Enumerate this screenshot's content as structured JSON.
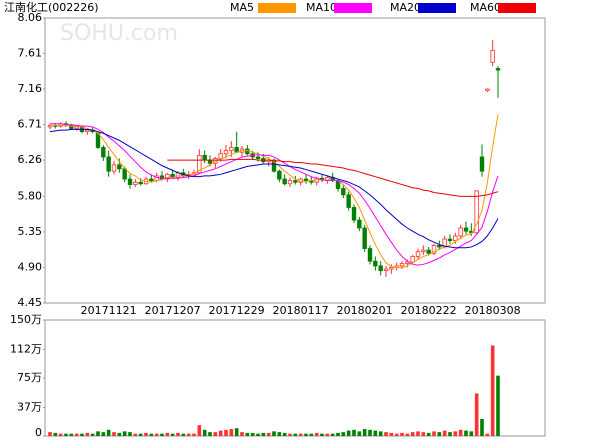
{
  "chart_data": [
    {
      "type": "candlestick",
      "title": "江南化工(002226)",
      "watermark": "SOHU.com",
      "categories": [
        null,
        null,
        null,
        null,
        null,
        null,
        null,
        null,
        null,
        null,
        null,
        "20171121",
        null,
        null,
        null,
        null,
        null,
        null,
        null,
        null,
        null,
        null,
        null,
        "20171207",
        null,
        null,
        null,
        null,
        null,
        null,
        null,
        null,
        null,
        null,
        null,
        "20171229",
        null,
        null,
        null,
        null,
        null,
        null,
        null,
        null,
        null,
        null,
        null,
        "20180117",
        null,
        null,
        null,
        null,
        null,
        null,
        null,
        null,
        null,
        null,
        null,
        "20180201",
        null,
        null,
        null,
        null,
        null,
        null,
        null,
        null,
        null,
        null,
        null,
        "20180222",
        null,
        null,
        null,
        null,
        null,
        null,
        null,
        null,
        null,
        null,
        null,
        "20180308",
        null
      ],
      "open": [
        6.68,
        6.7,
        6.69,
        6.72,
        6.7,
        6.66,
        6.68,
        6.62,
        6.64,
        6.6,
        6.42,
        6.3,
        6.12,
        6.2,
        6.15,
        6.02,
        5.95,
        5.98,
        5.96,
        6.02,
        6.0,
        6.06,
        6.02,
        6.08,
        6.04,
        6.1,
        6.06,
        6.08,
        6.1,
        6.32,
        6.26,
        6.22,
        6.28,
        6.34,
        6.38,
        6.42,
        6.36,
        6.4,
        6.34,
        6.3,
        6.28,
        6.24,
        6.26,
        6.12,
        6.02,
        5.96,
        6.0,
        5.98,
        6.02,
        6.0,
        5.98,
        6.03,
        6.01,
        6.04,
        6.0,
        5.9,
        5.82,
        5.66,
        5.5,
        5.4,
        5.14,
        4.98,
        4.92,
        4.86,
        4.88,
        4.9,
        4.92,
        4.95,
        4.97,
        5.04,
        5.1,
        5.12,
        5.08,
        5.18,
        5.16,
        5.26,
        5.24,
        5.3,
        5.4,
        5.36,
        5.34,
        6.3,
        7.14,
        7.5,
        7.42
      ],
      "high": [
        6.72,
        6.73,
        6.74,
        6.75,
        6.72,
        6.7,
        6.7,
        6.66,
        6.68,
        6.62,
        6.45,
        6.38,
        6.25,
        6.28,
        6.18,
        6.08,
        6.02,
        6.03,
        6.05,
        6.08,
        6.1,
        6.12,
        6.1,
        6.14,
        6.12,
        6.15,
        6.12,
        6.14,
        6.4,
        6.38,
        6.32,
        6.3,
        6.4,
        6.45,
        6.5,
        6.62,
        6.44,
        6.45,
        6.38,
        6.36,
        6.34,
        6.3,
        6.28,
        6.14,
        6.08,
        6.04,
        6.06,
        6.04,
        6.08,
        6.06,
        6.05,
        6.08,
        6.06,
        6.1,
        6.02,
        5.94,
        5.86,
        5.7,
        5.54,
        5.44,
        5.18,
        5.04,
        4.98,
        4.92,
        4.94,
        4.96,
        4.98,
        5.0,
        5.06,
        5.14,
        5.18,
        5.16,
        5.2,
        5.24,
        5.3,
        5.32,
        5.34,
        5.44,
        5.48,
        5.46,
        5.88,
        6.46,
        7.17,
        7.78,
        7.45
      ],
      "low": [
        6.65,
        6.66,
        6.67,
        6.68,
        6.64,
        6.63,
        6.6,
        6.58,
        6.6,
        6.4,
        6.25,
        6.05,
        6.08,
        6.1,
        5.98,
        5.9,
        5.92,
        5.94,
        5.95,
        5.98,
        5.98,
        6.0,
        5.98,
        6.02,
        6.0,
        6.04,
        6.02,
        6.05,
        6.08,
        6.22,
        6.18,
        6.16,
        6.24,
        6.28,
        6.3,
        6.35,
        6.3,
        6.32,
        6.26,
        6.24,
        6.22,
        6.18,
        6.1,
        5.98,
        5.94,
        5.92,
        5.95,
        5.94,
        5.96,
        5.95,
        5.94,
        5.98,
        5.96,
        5.98,
        5.86,
        5.78,
        5.62,
        5.46,
        5.36,
        5.1,
        4.94,
        4.86,
        4.8,
        4.78,
        4.82,
        4.86,
        4.88,
        4.9,
        4.94,
        5.0,
        5.06,
        5.05,
        5.06,
        5.12,
        5.14,
        5.2,
        5.2,
        5.26,
        5.32,
        5.3,
        5.32,
        6.05,
        7.12,
        7.45,
        7.05
      ],
      "close": [
        6.7,
        6.69,
        6.72,
        6.7,
        6.66,
        6.68,
        6.62,
        6.64,
        6.62,
        6.42,
        6.3,
        6.12,
        6.2,
        6.15,
        6.02,
        5.95,
        5.98,
        5.96,
        6.02,
        6.0,
        6.06,
        6.02,
        6.08,
        6.04,
        6.1,
        6.06,
        6.08,
        6.1,
        6.32,
        6.26,
        6.22,
        6.28,
        6.34,
        6.38,
        6.42,
        6.36,
        6.4,
        6.34,
        6.3,
        6.28,
        6.24,
        6.26,
        6.12,
        6.02,
        5.96,
        6.0,
        5.98,
        6.02,
        6.0,
        5.98,
        6.03,
        6.01,
        6.04,
        6.0,
        5.9,
        5.82,
        5.66,
        5.5,
        5.4,
        5.14,
        4.98,
        4.92,
        4.86,
        4.88,
        4.9,
        4.92,
        4.95,
        4.97,
        5.04,
        5.1,
        5.12,
        5.08,
        5.18,
        5.16,
        5.26,
        5.24,
        5.3,
        5.4,
        5.36,
        5.34,
        5.87,
        6.12,
        7.16,
        7.65,
        7.4
      ],
      "up_color": "#ff3232",
      "down_color": "#008000",
      "series": [
        {
          "name": "MA5",
          "color": "#ff9900",
          "values": [
            6.7,
            6.7,
            6.7,
            6.7,
            6.69,
            6.69,
            6.68,
            6.66,
            6.64,
            6.6,
            6.52,
            6.42,
            6.33,
            6.24,
            6.16,
            6.09,
            6.06,
            6.01,
            5.99,
            5.98,
            6.0,
            6.01,
            6.04,
            6.04,
            6.06,
            6.06,
            6.07,
            6.08,
            6.13,
            6.16,
            6.2,
            6.24,
            6.28,
            6.3,
            6.33,
            6.36,
            6.38,
            6.38,
            6.36,
            6.34,
            6.31,
            6.28,
            6.24,
            6.18,
            6.12,
            6.07,
            6.02,
            5.99,
            5.99,
            6.0,
            6.01,
            6.01,
            6.01,
            6.01,
            6.0,
            5.95,
            5.88,
            5.78,
            5.66,
            5.5,
            5.34,
            5.19,
            5.06,
            4.96,
            4.91,
            4.9,
            4.9,
            4.92,
            4.96,
            5.0,
            5.04,
            5.06,
            5.1,
            5.13,
            5.16,
            5.18,
            5.23,
            5.27,
            5.31,
            5.33,
            5.45,
            5.62,
            5.97,
            6.43,
            6.84
          ]
        },
        {
          "name": "MA10",
          "color": "#ff00ff",
          "values": [
            6.72,
            6.72,
            6.72,
            6.71,
            6.71,
            6.7,
            6.69,
            6.69,
            6.68,
            6.65,
            6.61,
            6.55,
            6.5,
            6.44,
            6.38,
            6.31,
            6.24,
            6.17,
            6.11,
            6.07,
            6.04,
            6.03,
            6.03,
            6.03,
            6.03,
            6.04,
            6.05,
            6.06,
            6.09,
            6.11,
            6.13,
            6.15,
            6.18,
            6.21,
            6.24,
            6.27,
            6.3,
            6.31,
            6.32,
            6.33,
            6.32,
            6.32,
            6.3,
            6.26,
            6.22,
            6.18,
            6.14,
            6.11,
            6.08,
            6.05,
            6.03,
            6.01,
            6.0,
            6.01,
            6.0,
            5.98,
            5.95,
            5.9,
            5.84,
            5.75,
            5.65,
            5.54,
            5.43,
            5.32,
            5.22,
            5.12,
            5.04,
            4.98,
            4.94,
            4.93,
            4.94,
            4.96,
            4.99,
            5.02,
            5.06,
            5.09,
            5.13,
            5.17,
            5.21,
            5.24,
            5.32,
            5.41,
            5.61,
            5.86,
            6.06
          ]
        },
        {
          "name": "MA20",
          "color": "#0000cc",
          "values": [
            6.62,
            6.63,
            6.64,
            6.64,
            6.65,
            6.65,
            6.65,
            6.65,
            6.64,
            6.62,
            6.6,
            6.57,
            6.54,
            6.51,
            6.47,
            6.43,
            6.39,
            6.35,
            6.31,
            6.27,
            6.23,
            6.19,
            6.16,
            6.13,
            6.1,
            6.08,
            6.06,
            6.05,
            6.05,
            6.06,
            6.06,
            6.07,
            6.08,
            6.1,
            6.12,
            6.14,
            6.16,
            6.18,
            6.19,
            6.2,
            6.21,
            6.21,
            6.21,
            6.2,
            6.19,
            6.18,
            6.17,
            6.16,
            6.14,
            6.12,
            6.1,
            6.08,
            6.06,
            6.04,
            6.02,
            6.0,
            5.98,
            5.95,
            5.92,
            5.87,
            5.82,
            5.76,
            5.7,
            5.63,
            5.57,
            5.51,
            5.45,
            5.4,
            5.36,
            5.32,
            5.29,
            5.25,
            5.22,
            5.19,
            5.17,
            5.16,
            5.15,
            5.15,
            5.15,
            5.16,
            5.19,
            5.23,
            5.3,
            5.4,
            5.52
          ]
        },
        {
          "name": "MA60",
          "color": "#ee0000",
          "values": [
            null,
            null,
            null,
            null,
            null,
            null,
            null,
            null,
            null,
            null,
            null,
            null,
            null,
            null,
            null,
            null,
            null,
            null,
            null,
            null,
            null,
            null,
            6.26,
            6.26,
            6.26,
            6.26,
            6.26,
            6.26,
            6.26,
            6.26,
            6.26,
            6.26,
            6.26,
            6.26,
            6.27,
            6.27,
            6.27,
            6.27,
            6.27,
            6.26,
            6.26,
            6.26,
            6.25,
            6.25,
            6.24,
            6.24,
            6.23,
            6.23,
            6.22,
            6.21,
            6.21,
            6.2,
            6.19,
            6.18,
            6.17,
            6.16,
            6.14,
            6.13,
            6.11,
            6.09,
            6.07,
            6.05,
            6.03,
            6.01,
            5.99,
            5.97,
            5.95,
            5.93,
            5.91,
            5.9,
            5.88,
            5.87,
            5.85,
            5.84,
            5.83,
            5.82,
            5.81,
            5.8,
            5.8,
            5.8,
            5.8,
            5.81,
            5.82,
            5.84,
            5.86
          ]
        }
      ],
      "ylim": [
        4.45,
        8.06
      ],
      "yticks": [
        8.06,
        7.61,
        7.16,
        6.71,
        6.26,
        {
          "value": 5.8,
          "label": "5.80"
        },
        5.35,
        {
          "value": 4.9,
          "label": "4.90"
        },
        4.45
      ]
    },
    {
      "type": "bar",
      "values": [
        5,
        4,
        3,
        3,
        3,
        3,
        3,
        4,
        3,
        6,
        5,
        8,
        5,
        4,
        6,
        5,
        3,
        3,
        4,
        3,
        3,
        3,
        4,
        3,
        4,
        3,
        3,
        3,
        14,
        8,
        5,
        5,
        7,
        8,
        9,
        10,
        5,
        4,
        4,
        3,
        4,
        4,
        6,
        5,
        4,
        3,
        3,
        3,
        3,
        3,
        4,
        3,
        3,
        3,
        4,
        5,
        7,
        8,
        6,
        9,
        8,
        7,
        6,
        5,
        4,
        3,
        4,
        3,
        5,
        6,
        5,
        4,
        6,
        5,
        7,
        5,
        6,
        8,
        7,
        6,
        55,
        22,
        3,
        117,
        78
      ],
      "ylim": [
        0,
        150
      ],
      "yticks": [
        {
          "value": 150,
          "label": "150万"
        },
        {
          "value": 112,
          "label": "112万"
        },
        {
          "value": 75,
          "label": "75万"
        },
        {
          "value": 37,
          "label": "37万"
        },
        0
      ]
    }
  ]
}
